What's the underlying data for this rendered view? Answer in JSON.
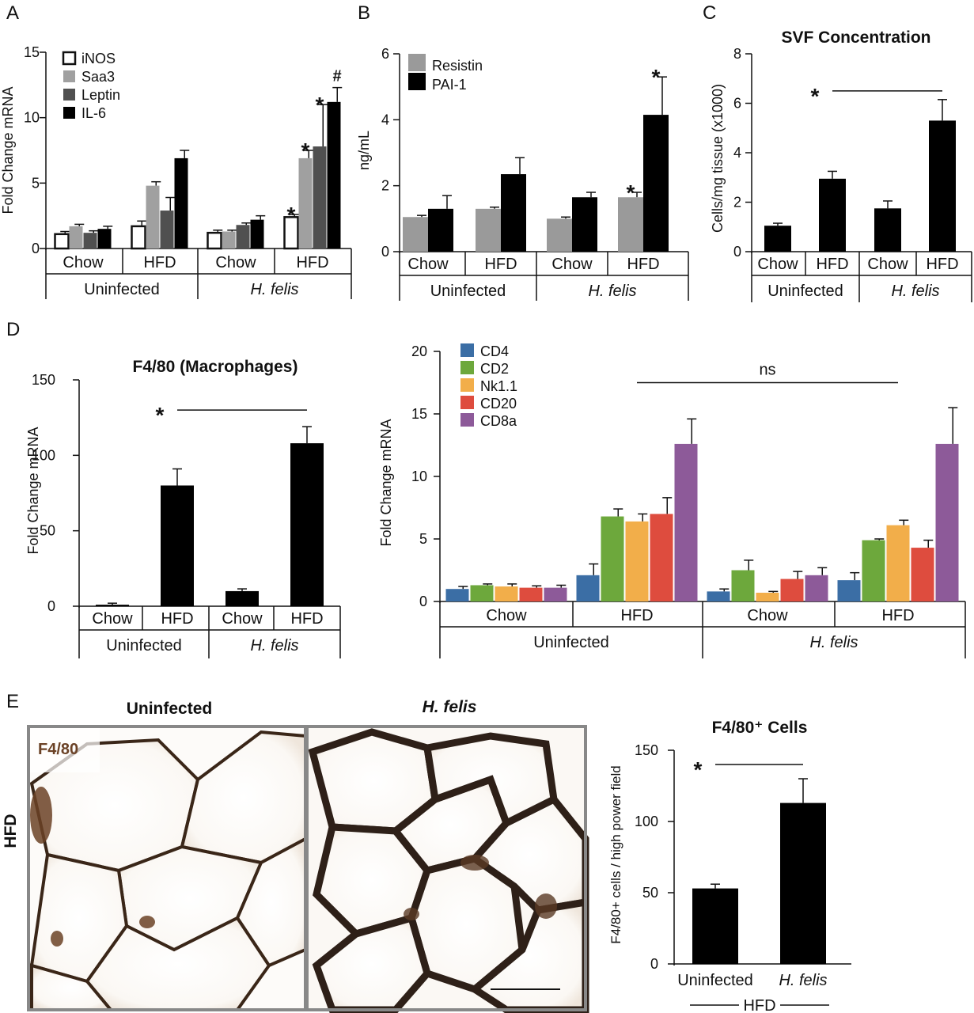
{
  "panels": {
    "A": "A",
    "B": "B",
    "C": "C",
    "D": "D",
    "E": "E"
  },
  "chart_data": [
    {
      "id": "A",
      "type": "bar",
      "title": "",
      "ylabel": "Fold Change mRNA",
      "ylim": [
        0,
        15
      ],
      "yticks": [
        0,
        5,
        10,
        15
      ],
      "categories": [
        "Chow",
        "HFD",
        "Chow",
        "HFD"
      ],
      "groups": [
        "Uninfected",
        "H. felis"
      ],
      "legend_position": "top-left",
      "series": [
        {
          "name": "iNOS",
          "color": "#ffffff",
          "values": [
            1.1,
            1.7,
            1.2,
            2.4
          ],
          "errors": [
            0.2,
            0.4,
            0.2,
            0.2
          ]
        },
        {
          "name": "Saa3",
          "color": "#a0a0a0",
          "values": [
            1.7,
            4.8,
            1.3,
            6.9
          ],
          "errors": [
            0.15,
            0.3,
            0.1,
            0.6
          ]
        },
        {
          "name": "Leptin",
          "color": "#505050",
          "values": [
            1.2,
            2.9,
            1.8,
            7.8
          ],
          "errors": [
            0.15,
            1.0,
            0.15,
            3.2
          ]
        },
        {
          "name": "IL-6",
          "color": "#000000",
          "values": [
            1.5,
            6.9,
            2.2,
            11.2
          ],
          "errors": [
            0.2,
            0.6,
            0.3,
            1.1
          ]
        }
      ],
      "annotations": [
        {
          "text": "*",
          "category": 3,
          "series": 0
        },
        {
          "text": "*",
          "category": 3,
          "series": 1
        },
        {
          "text": "*",
          "category": 3,
          "series": 2
        },
        {
          "text": "#",
          "category": 3,
          "series": 3
        }
      ]
    },
    {
      "id": "B",
      "type": "bar",
      "title": "",
      "ylabel": "ng/mL",
      "ylim": [
        0,
        6
      ],
      "yticks": [
        0,
        2,
        4,
        6
      ],
      "categories": [
        "Chow",
        "HFD",
        "Chow",
        "HFD"
      ],
      "groups": [
        "Uninfected",
        "H. felis"
      ],
      "legend_position": "top-left",
      "series": [
        {
          "name": "Resistin",
          "color": "#9a9a9a",
          "values": [
            1.05,
            1.3,
            1.0,
            1.65
          ],
          "errors": [
            0.05,
            0.05,
            0.05,
            0.15
          ]
        },
        {
          "name": "PAI-1",
          "color": "#000000",
          "values": [
            1.3,
            2.35,
            1.65,
            4.15
          ],
          "errors": [
            0.4,
            0.5,
            0.15,
            1.15
          ]
        }
      ],
      "annotations": [
        {
          "text": "*",
          "category": 3,
          "series": 0
        },
        {
          "text": "*",
          "category": 3,
          "series": 1
        }
      ]
    },
    {
      "id": "C",
      "type": "bar",
      "title": "SVF Concentration",
      "ylabel": "Cells/mg tissue (x1000)",
      "ylim": [
        0,
        8
      ],
      "yticks": [
        0,
        2,
        4,
        6,
        8
      ],
      "categories": [
        "Chow",
        "HFD",
        "Chow",
        "HFD"
      ],
      "groups": [
        "Uninfected",
        "H. felis"
      ],
      "series": [
        {
          "name": "",
          "color": "#000000",
          "values": [
            1.05,
            2.95,
            1.75,
            5.3
          ],
          "errors": [
            0.1,
            0.3,
            0.3,
            0.85
          ]
        }
      ],
      "comparison": {
        "text": "*",
        "from": 1,
        "to": 3,
        "y": 6.5
      }
    },
    {
      "id": "D1",
      "type": "bar",
      "title": "F4/80 (Macrophages)",
      "ylabel": "Fold Change mRNA",
      "ylim": [
        0,
        150
      ],
      "yticks": [
        0,
        50,
        100,
        150
      ],
      "categories": [
        "Chow",
        "HFD",
        "Chow",
        "HFD"
      ],
      "groups": [
        "Uninfected",
        "H. felis"
      ],
      "series": [
        {
          "name": "",
          "color": "#000000",
          "values": [
            1,
            80,
            10,
            108
          ],
          "errors": [
            1,
            11,
            1.5,
            11
          ]
        }
      ],
      "comparison": {
        "text": "*",
        "from": 1,
        "to": 3,
        "y": 130
      }
    },
    {
      "id": "D2",
      "type": "bar",
      "title": "",
      "ylabel": "Fold Change mRNA",
      "ylim": [
        0,
        20
      ],
      "yticks": [
        0,
        5,
        10,
        15,
        20
      ],
      "categories": [
        "Chow",
        "HFD",
        "Chow",
        "HFD"
      ],
      "groups": [
        "Uninfected",
        "H. felis"
      ],
      "legend_position": "top-left",
      "series": [
        {
          "name": "CD4",
          "color": "#3b6ea5",
          "values": [
            1.0,
            2.1,
            0.8,
            1.7
          ],
          "errors": [
            0.2,
            0.9,
            0.2,
            0.6
          ]
        },
        {
          "name": "CD2",
          "color": "#6da83c",
          "values": [
            1.3,
            6.8,
            2.5,
            4.9
          ],
          "errors": [
            0.1,
            0.6,
            0.8,
            0.1
          ]
        },
        {
          "name": "Nk1.1",
          "color": "#f2ae4a",
          "values": [
            1.2,
            6.4,
            0.7,
            6.1
          ],
          "errors": [
            0.2,
            0.6,
            0.1,
            0.4
          ]
        },
        {
          "name": "CD20",
          "color": "#de4c3e",
          "values": [
            1.1,
            7.0,
            1.8,
            4.3
          ],
          "errors": [
            0.15,
            1.3,
            0.6,
            0.6
          ]
        },
        {
          "name": "CD8a",
          "color": "#8d5a99",
          "values": [
            1.1,
            12.6,
            2.1,
            12.6
          ],
          "errors": [
            0.2,
            2.0,
            0.6,
            2.9
          ]
        }
      ],
      "comparison": {
        "text": "ns",
        "from": 1,
        "to": 3,
        "y": 17.5
      }
    },
    {
      "id": "E",
      "type": "bar",
      "title": "F4/80⁺ Cells",
      "ylabel": "F4/80+ cells / high power field",
      "ylim": [
        0,
        150
      ],
      "yticks": [
        0,
        50,
        100,
        150
      ],
      "categories": [
        "Uninfected",
        "H. felis"
      ],
      "group_label": "HFD",
      "series": [
        {
          "name": "",
          "color": "#000000",
          "values": [
            53,
            113
          ],
          "errors": [
            3,
            17
          ]
        }
      ],
      "comparison": {
        "text": "*",
        "from": 0,
        "to": 1,
        "y": 140
      }
    }
  ],
  "micrographs": {
    "row_label": "HFD",
    "left_title": "Uninfected",
    "right_title": "H. felis",
    "stain_label": "F4/80",
    "stain_color": "#6b4226"
  }
}
